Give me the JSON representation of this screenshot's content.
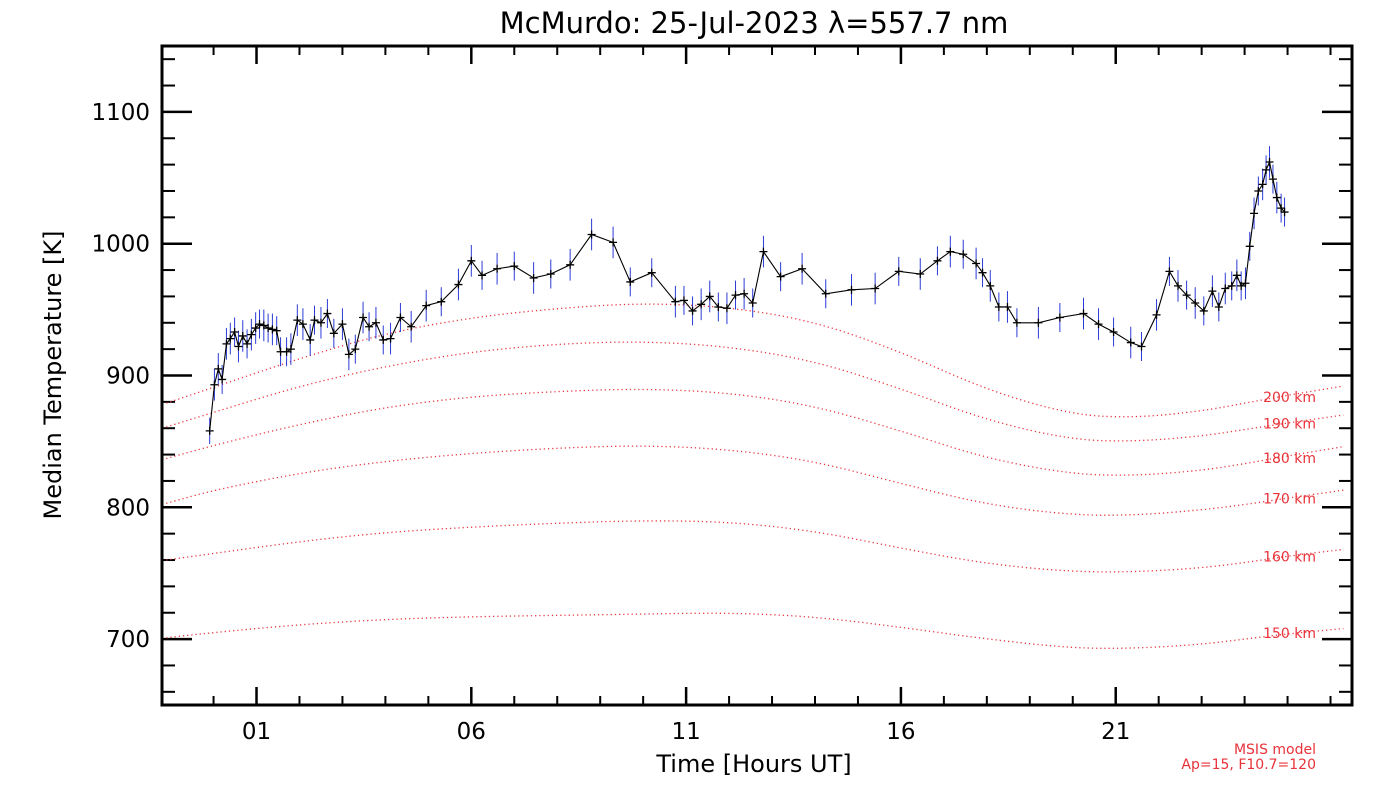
{
  "chart_data": {
    "type": "line",
    "title": "McMurdo: 25-Jul-2023 λ=557.7 nm",
    "xlabel": "Time [Hours UT]",
    "ylabel": "Median Temperature [K]",
    "xlim": [
      -1.2,
      26.5
    ],
    "ylim": [
      650,
      1150
    ],
    "x_ticks": [
      1,
      6,
      11,
      16,
      21
    ],
    "x_tick_labels": [
      "01",
      "06",
      "11",
      "16",
      "21"
    ],
    "y_ticks": [
      700,
      800,
      900,
      1000,
      1100
    ],
    "y_tick_labels": [
      "700",
      "800",
      "900",
      "1000",
      "1100"
    ],
    "grid": false,
    "series": [
      {
        "color": "#000000",
        "error_color": "#2b3bd6",
        "points": [
          [
            -0.09,
            858,
            10
          ],
          [
            0.02,
            893,
            12
          ],
          [
            0.11,
            905,
            12
          ],
          [
            0.2,
            897,
            11
          ],
          [
            0.3,
            924,
            12
          ],
          [
            0.39,
            928,
            12
          ],
          [
            0.49,
            933,
            11
          ],
          [
            0.58,
            922,
            12
          ],
          [
            0.68,
            930,
            12
          ],
          [
            0.78,
            924,
            11
          ],
          [
            0.88,
            931,
            12
          ],
          [
            0.98,
            936,
            12
          ],
          [
            1.07,
            939,
            11
          ],
          [
            1.17,
            938,
            12
          ],
          [
            1.27,
            936,
            11
          ],
          [
            1.37,
            935,
            12
          ],
          [
            1.47,
            934,
            11
          ],
          [
            1.56,
            918,
            11
          ],
          [
            1.7,
            918,
            11
          ],
          [
            1.8,
            920,
            12
          ],
          [
            1.95,
            942,
            12
          ],
          [
            2.08,
            939,
            12
          ],
          [
            2.25,
            927,
            12
          ],
          [
            2.35,
            942,
            11
          ],
          [
            2.5,
            940,
            12
          ],
          [
            2.65,
            947,
            11
          ],
          [
            2.8,
            932,
            11
          ],
          [
            3.0,
            939,
            12
          ],
          [
            3.15,
            916,
            12
          ],
          [
            3.3,
            920,
            11
          ],
          [
            3.48,
            944,
            12
          ],
          [
            3.62,
            937,
            11
          ],
          [
            3.78,
            940,
            12
          ],
          [
            3.95,
            927,
            11
          ],
          [
            4.12,
            928,
            12
          ],
          [
            4.35,
            944,
            11
          ],
          [
            4.6,
            937,
            12
          ],
          [
            4.95,
            953,
            12
          ],
          [
            5.3,
            956,
            11
          ],
          [
            5.7,
            969,
            12
          ],
          [
            6.0,
            987,
            12
          ],
          [
            6.25,
            976,
            11
          ],
          [
            6.6,
            981,
            12
          ],
          [
            7.0,
            983,
            11
          ],
          [
            7.45,
            974,
            12
          ],
          [
            7.85,
            977,
            11
          ],
          [
            8.3,
            984,
            12
          ],
          [
            8.8,
            1007,
            12
          ],
          [
            9.3,
            1001,
            12
          ],
          [
            9.7,
            971,
            11
          ],
          [
            10.2,
            978,
            11
          ],
          [
            10.75,
            956,
            12
          ],
          [
            10.95,
            957,
            11
          ],
          [
            11.15,
            949,
            11
          ],
          [
            11.35,
            954,
            12
          ],
          [
            11.55,
            960,
            12
          ],
          [
            11.75,
            952,
            11
          ],
          [
            11.95,
            951,
            12
          ],
          [
            12.15,
            961,
            11
          ],
          [
            12.35,
            962,
            12
          ],
          [
            12.55,
            955,
            11
          ],
          [
            12.8,
            994,
            12
          ],
          [
            13.2,
            975,
            11
          ],
          [
            13.7,
            981,
            12
          ],
          [
            14.25,
            962,
            11
          ],
          [
            14.85,
            965,
            12
          ],
          [
            15.4,
            966,
            12
          ],
          [
            15.95,
            979,
            11
          ],
          [
            16.45,
            977,
            12
          ],
          [
            16.85,
            987,
            11
          ],
          [
            17.15,
            994,
            12
          ],
          [
            17.45,
            992,
            11
          ],
          [
            17.75,
            985,
            12
          ],
          [
            17.9,
            978,
            11
          ],
          [
            18.08,
            968,
            12
          ],
          [
            18.28,
            952,
            11
          ],
          [
            18.48,
            952,
            12
          ],
          [
            18.7,
            940,
            11
          ],
          [
            19.2,
            940,
            12
          ],
          [
            19.7,
            944,
            11
          ],
          [
            20.25,
            947,
            12
          ],
          [
            20.6,
            939,
            12
          ],
          [
            20.95,
            933,
            11
          ],
          [
            21.35,
            925,
            12
          ],
          [
            21.6,
            922,
            11
          ],
          [
            21.95,
            946,
            12
          ],
          [
            22.25,
            979,
            11
          ],
          [
            22.45,
            968,
            12
          ],
          [
            22.65,
            961,
            11
          ],
          [
            22.85,
            955,
            12
          ],
          [
            23.05,
            949,
            11
          ],
          [
            23.25,
            964,
            12
          ],
          [
            23.4,
            952,
            11
          ],
          [
            23.55,
            966,
            12
          ],
          [
            23.7,
            968,
            11
          ],
          [
            23.82,
            976,
            12
          ],
          [
            23.92,
            968,
            11
          ],
          [
            24.02,
            970,
            12
          ],
          [
            24.12,
            998,
            11
          ],
          [
            24.22,
            1023,
            12
          ],
          [
            24.32,
            1040,
            11
          ],
          [
            24.42,
            1045,
            12
          ],
          [
            24.5,
            1056,
            11
          ],
          [
            24.58,
            1062,
            12
          ],
          [
            24.66,
            1049,
            11
          ],
          [
            24.75,
            1035,
            12
          ],
          [
            24.85,
            1027,
            11
          ],
          [
            24.93,
            1024,
            11
          ]
        ]
      }
    ],
    "model_curves": {
      "color": "#e8333a",
      "curves": [
        {
          "label": "200 km",
          "x": [
            -1.1,
            0,
            2,
            4,
            6,
            8,
            10,
            12,
            14,
            16,
            18,
            20,
            21.5,
            23,
            24,
            25,
            26.3
          ],
          "y": [
            879,
            891,
            913,
            932,
            944,
            951,
            955,
            952,
            941,
            918,
            889,
            870,
            868,
            873,
            879,
            885,
            892
          ]
        },
        {
          "label": "190 km",
          "x": [
            -1.1,
            0,
            2,
            4,
            6,
            8,
            10,
            12,
            14,
            16,
            18,
            20,
            21.5,
            23,
            24,
            25,
            26.3
          ],
          "y": [
            861,
            872,
            892,
            907,
            918,
            924,
            926,
            922,
            911,
            890,
            866,
            851,
            850,
            854,
            859,
            864,
            870
          ]
        },
        {
          "label": "180 km",
          "x": [
            -1.1,
            0,
            2,
            4,
            6,
            8,
            10,
            12,
            14,
            16,
            18,
            20,
            21.5,
            23,
            24,
            25,
            26.3
          ],
          "y": [
            837,
            847,
            863,
            876,
            884,
            888,
            890,
            887,
            877,
            858,
            837,
            825,
            824,
            828,
            833,
            839,
            846
          ]
        },
        {
          "label": "170 km",
          "x": [
            -1.1,
            0,
            2,
            4,
            6,
            8,
            10,
            12,
            14,
            16,
            18,
            20,
            21.5,
            23,
            24,
            25,
            26.3
          ],
          "y": [
            803,
            813,
            826,
            835,
            841,
            845,
            847,
            844,
            835,
            818,
            802,
            794,
            794,
            798,
            802,
            807,
            813
          ]
        },
        {
          "label": "160 km",
          "x": [
            -1.1,
            0,
            2,
            4,
            6,
            8,
            10,
            12,
            14,
            16,
            18,
            20,
            21.5,
            23,
            24,
            25,
            26.3
          ],
          "y": [
            760,
            765,
            774,
            781,
            785,
            788,
            790,
            789,
            782,
            769,
            757,
            751,
            751,
            754,
            758,
            763,
            768
          ]
        },
        {
          "label": "150 km",
          "x": [
            -1.1,
            0,
            2,
            4,
            6,
            8,
            10,
            12,
            14,
            16,
            18,
            20,
            21.5,
            23,
            24,
            25,
            26.3
          ],
          "y": [
            701,
            705,
            711,
            715,
            717,
            718,
            719,
            720,
            717,
            709,
            700,
            693,
            693,
            696,
            700,
            704,
            708
          ]
        }
      ]
    },
    "annotations": [
      "MSIS model",
      "Ap=15, F10.7=120"
    ]
  }
}
